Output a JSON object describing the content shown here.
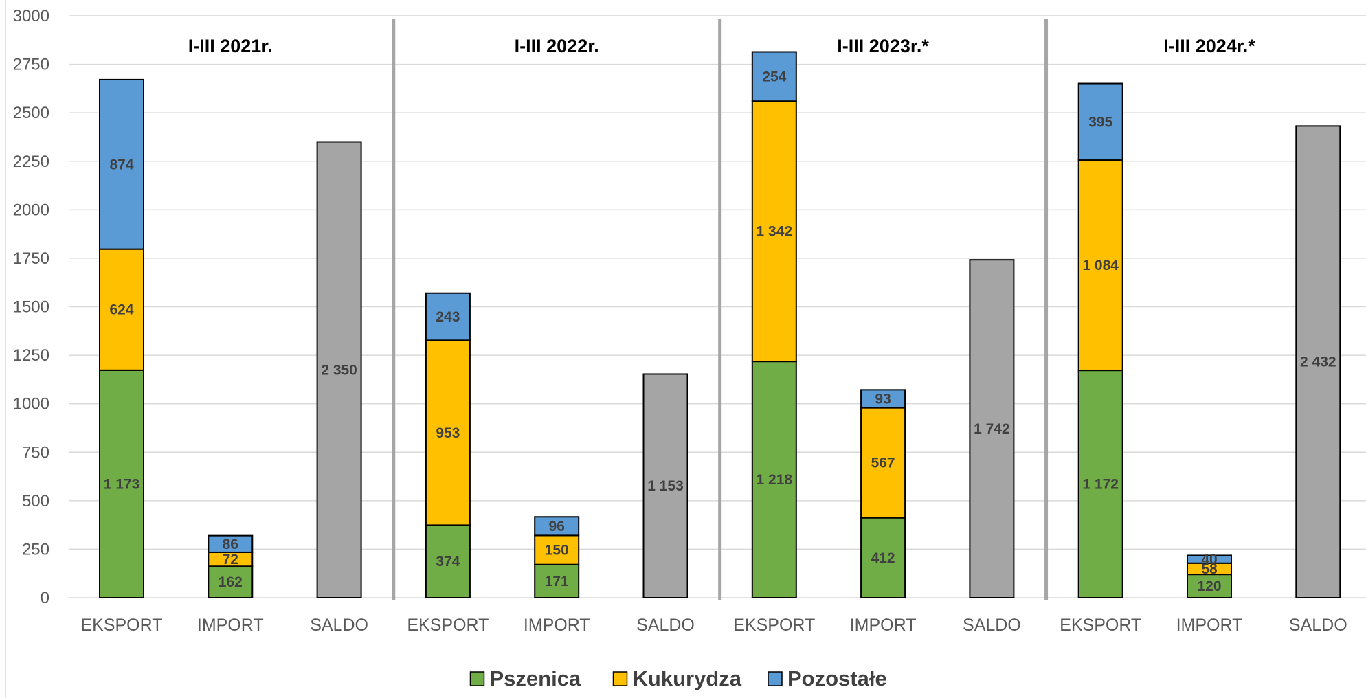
{
  "chart_data": {
    "type": "bar",
    "stacked": true,
    "ylim": [
      0,
      3000
    ],
    "yticks": [
      0,
      250,
      500,
      750,
      1000,
      1250,
      1500,
      1750,
      2000,
      2250,
      2500,
      2750,
      3000
    ],
    "grid": true,
    "legend_position": "bottom",
    "groups": [
      {
        "title": "I-III 2021r.",
        "categories": [
          "EKSPORT",
          "IMPORT",
          "SALDO"
        ]
      },
      {
        "title": "I-III 2022r.",
        "categories": [
          "EKSPORT",
          "IMPORT",
          "SALDO"
        ]
      },
      {
        "title": "I-III 2023r.*",
        "categories": [
          "EKSPORT",
          "IMPORT",
          "SALDO"
        ]
      },
      {
        "title": "I-III 2024r.*",
        "categories": [
          "EKSPORT",
          "IMPORT",
          "SALDO"
        ]
      }
    ],
    "series": [
      {
        "name": "Pszenica",
        "color": "#70ad47",
        "values": [
          1173,
          162,
          null,
          374,
          171,
          null,
          1218,
          412,
          null,
          1172,
          120,
          null
        ],
        "labels": [
          "1 173",
          "162",
          "",
          "374",
          "171",
          "",
          "1 218",
          "412",
          "",
          "1 172",
          "120",
          ""
        ]
      },
      {
        "name": "Kukurydza",
        "color": "#ffc000",
        "values": [
          624,
          72,
          null,
          953,
          150,
          null,
          1342,
          567,
          null,
          1084,
          58,
          null
        ],
        "labels": [
          "624",
          "72",
          "",
          "953",
          "150",
          "",
          "1 342",
          "567",
          "",
          "1 084",
          "58",
          ""
        ]
      },
      {
        "name": "Pozostałe",
        "color": "#5b9bd5",
        "values": [
          874,
          86,
          null,
          243,
          96,
          null,
          254,
          93,
          null,
          395,
          40,
          null
        ],
        "labels": [
          "874",
          "86",
          "",
          "243",
          "96",
          "",
          "254",
          "93",
          "",
          "395",
          "40",
          ""
        ]
      }
    ],
    "saldo": {
      "color": "#a5a5a5",
      "values": [
        null,
        null,
        2350,
        null,
        null,
        1153,
        null,
        null,
        1742,
        null,
        null,
        2432
      ],
      "labels": [
        "",
        "",
        "2 350",
        "",
        "",
        "1 153",
        "",
        "",
        "1 742",
        "",
        "",
        "2 432"
      ]
    }
  }
}
